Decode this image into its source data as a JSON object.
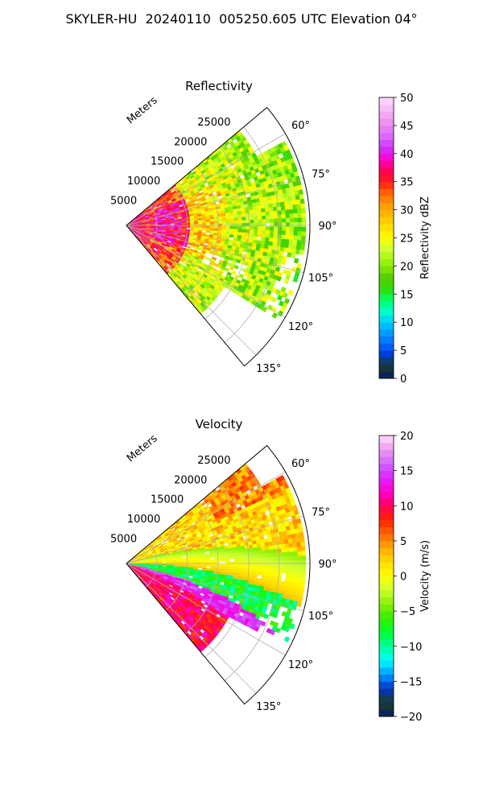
{
  "title": "SKYLER-HU  20240110  005250.605 UTC Elevation 04°",
  "chart_data": [
    {
      "type": "heatmap",
      "projection": "polar-sector",
      "title": "Reflectivity",
      "radial_label": "Meters",
      "radial_ticks": [
        5000,
        10000,
        15000,
        20000,
        25000
      ],
      "radial_tick_labels": [
        "5000",
        "10000",
        "15000",
        "20000",
        "25000"
      ],
      "rlim": [
        0,
        30000
      ],
      "azimuth_range_deg": [
        50,
        140
      ],
      "azimuth_ticks": [
        60,
        75,
        90,
        105,
        120,
        135
      ],
      "azimuth_tick_labels": [
        "60°",
        "75°",
        "90°",
        "105°",
        "120°",
        "135°"
      ],
      "grid": true,
      "colorbar": {
        "label": "Reflectivity dBZ",
        "range": [
          0,
          50
        ],
        "ticks": [
          0,
          5,
          10,
          15,
          20,
          25,
          30,
          35,
          40,
          45,
          50
        ],
        "tick_labels": [
          "0",
          "5",
          "10",
          "15",
          "20",
          "25",
          "30",
          "35",
          "40",
          "45",
          "50"
        ],
        "stops": [
          [
            0,
            "#0a1a66"
          ],
          [
            2.5,
            "#1a3f2a"
          ],
          [
            4,
            "#0033cc"
          ],
          [
            6,
            "#0066ff"
          ],
          [
            8,
            "#0099ff"
          ],
          [
            10,
            "#00ccff"
          ],
          [
            12,
            "#00ffcc"
          ],
          [
            14,
            "#00ff66"
          ],
          [
            16,
            "#33dd00"
          ],
          [
            18,
            "#55cc00"
          ],
          [
            20,
            "#88ee00"
          ],
          [
            23,
            "#ccff33"
          ],
          [
            25,
            "#ffff00"
          ],
          [
            27,
            "#ffdd00"
          ],
          [
            29,
            "#ffbb00"
          ],
          [
            31,
            "#ff9900"
          ],
          [
            33,
            "#ff6600"
          ],
          [
            35,
            "#ff1a1a"
          ],
          [
            37,
            "#ff0055"
          ],
          [
            39,
            "#ff00cc"
          ],
          [
            41,
            "#cc33ff"
          ],
          [
            43,
            "#dd66ff"
          ],
          [
            46,
            "#ee99ee"
          ],
          [
            50,
            "#ffddff"
          ]
        ]
      },
      "field_description": {
        "near_range_value": 38,
        "mid_range_value": 24,
        "far_range_value": 20,
        "dominant_band": [
          18,
          30
        ]
      }
    },
    {
      "type": "heatmap",
      "projection": "polar-sector",
      "title": "Velocity",
      "radial_label": "Meters",
      "radial_ticks": [
        5000,
        10000,
        15000,
        20000,
        25000
      ],
      "radial_tick_labels": [
        "5000",
        "10000",
        "15000",
        "20000",
        "25000"
      ],
      "rlim": [
        0,
        30000
      ],
      "azimuth_range_deg": [
        50,
        140
      ],
      "azimuth_ticks": [
        60,
        75,
        90,
        105,
        120,
        135
      ],
      "azimuth_tick_labels": [
        "60°",
        "75°",
        "90°",
        "105°",
        "120°",
        "135°"
      ],
      "grid": true,
      "colorbar": {
        "label": "Velocity (m/s)",
        "range": [
          -20,
          20
        ],
        "ticks": [
          -20,
          -15,
          -10,
          -5,
          0,
          5,
          10,
          15,
          20
        ],
        "tick_labels": [
          "−20",
          "−15",
          "−10",
          "−5",
          "0",
          "5",
          "10",
          "15",
          "20"
        ],
        "stops": [
          [
            -20,
            "#0a1a66"
          ],
          [
            -18,
            "#1a3f2a"
          ],
          [
            -16,
            "#0033cc"
          ],
          [
            -14,
            "#0099ff"
          ],
          [
            -12,
            "#00ffff"
          ],
          [
            -10,
            "#00ff99"
          ],
          [
            -8,
            "#00ff33"
          ],
          [
            -6,
            "#33ee00"
          ],
          [
            -4,
            "#88ee00"
          ],
          [
            -2,
            "#ccff33"
          ],
          [
            0,
            "#ffff00"
          ],
          [
            2,
            "#ffdd00"
          ],
          [
            4,
            "#ffaa00"
          ],
          [
            6,
            "#ff6600"
          ],
          [
            8,
            "#ff2200"
          ],
          [
            10,
            "#ff0055"
          ],
          [
            12,
            "#ff00cc"
          ],
          [
            14,
            "#dd22ff"
          ],
          [
            16,
            "#cc66ff"
          ],
          [
            18,
            "#ee99ee"
          ],
          [
            20,
            "#ffddff"
          ]
        ]
      },
      "field_description": {
        "north_sector_value": 2,
        "center_value": -8,
        "south_sector_value": 10
      }
    }
  ]
}
